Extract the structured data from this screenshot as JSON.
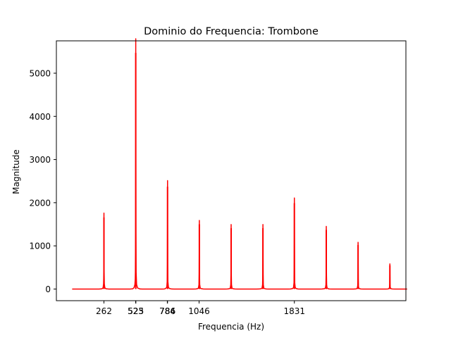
{
  "chart_data": {
    "type": "line",
    "title": "Dominio do Frequencia: Trombone",
    "xlabel": "Frequencia (Hz)",
    "ylabel": "Magnitude",
    "xlim": [
      -130,
      2750
    ],
    "ylim": [
      -270,
      5750
    ],
    "xticks": [
      {
        "value": 262,
        "label": "262"
      },
      {
        "value": 523,
        "label": "523"
      },
      {
        "value": 525,
        "label": "525"
      },
      {
        "value": 784,
        "label": "784"
      },
      {
        "value": 786,
        "label": "786"
      },
      {
        "value": 1046,
        "label": "1046"
      },
      {
        "value": 1831,
        "label": "1831"
      }
    ],
    "yticks": [
      0,
      1000,
      2000,
      3000,
      4000,
      5000
    ],
    "color": "#ff0000",
    "grid": false,
    "legend": "none",
    "peaks": [
      {
        "x": 262,
        "y": 1660
      },
      {
        "x": 524,
        "y": 5470
      },
      {
        "x": 786,
        "y": 2370
      },
      {
        "x": 1048,
        "y": 1500
      },
      {
        "x": 1310,
        "y": 1410
      },
      {
        "x": 1572,
        "y": 1410
      },
      {
        "x": 1831,
        "y": 1990
      },
      {
        "x": 2094,
        "y": 1370
      },
      {
        "x": 2356,
        "y": 1020
      },
      {
        "x": 2618,
        "y": 550
      }
    ],
    "x_range_data": [
      0,
      2760
    ]
  }
}
